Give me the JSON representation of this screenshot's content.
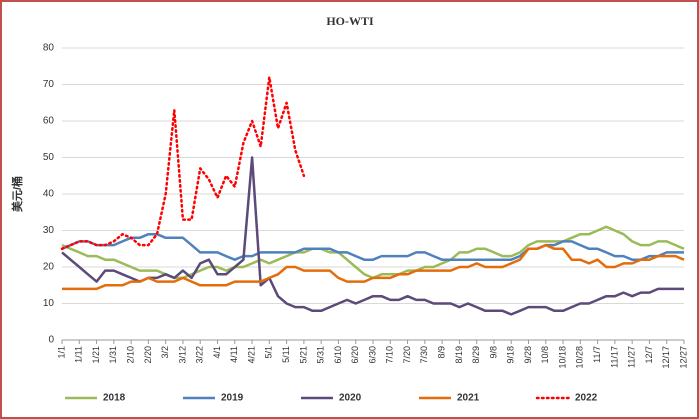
{
  "chart_data": {
    "type": "line",
    "title": "HO-WTI",
    "y_label": "美元/桶",
    "categories": [
      "1/1",
      null,
      "1/11",
      null,
      "1/21",
      null,
      "1/31",
      null,
      "2/10",
      null,
      "2/20",
      null,
      "3/2",
      null,
      "3/12",
      null,
      "3/22",
      null,
      "4/1",
      null,
      "4/11",
      null,
      "4/21",
      null,
      "5/1",
      null,
      "5/11",
      null,
      "5/21",
      null,
      "5/31",
      null,
      "6/10",
      null,
      "6/20",
      null,
      "6/30",
      null,
      "7/10",
      null,
      "7/20",
      null,
      "7/30",
      null,
      "8/9",
      null,
      "8/19",
      null,
      "8/29",
      null,
      "9/8",
      null,
      "9/18",
      null,
      "9/28",
      null,
      "10/8",
      null,
      "10/18",
      null,
      "10/28",
      null,
      "11/7",
      null,
      "11/17",
      null,
      "11/27",
      null,
      "12/7",
      null,
      "12/17",
      null,
      "12/27"
    ],
    "series": [
      {
        "name": "2018",
        "color": "#9bbb59",
        "dash": "solid",
        "values": [
          26,
          25,
          24,
          23,
          23,
          22,
          22,
          21,
          20,
          19,
          19,
          19,
          18,
          17,
          17,
          18,
          19,
          20,
          20,
          19,
          20,
          20,
          21,
          22,
          21,
          22,
          23,
          24,
          24,
          25,
          25,
          24,
          24,
          22,
          20,
          18,
          17,
          18,
          18,
          18,
          19,
          19,
          20,
          20,
          21,
          22,
          24,
          24,
          25,
          25,
          24,
          23,
          23,
          24,
          26,
          27,
          27,
          27,
          27,
          28,
          29,
          29,
          30,
          31,
          30,
          29,
          27,
          26,
          26,
          27,
          27,
          26,
          25
        ]
      },
      {
        "name": "2019",
        "color": "#4f81bd",
        "dash": "solid",
        "values": [
          25,
          26,
          27,
          27,
          26,
          26,
          26,
          27,
          28,
          28,
          29,
          29,
          28,
          28,
          28,
          26,
          24,
          24,
          24,
          23,
          22,
          23,
          23,
          24,
          24,
          24,
          24,
          24,
          25,
          25,
          25,
          25,
          24,
          24,
          23,
          22,
          22,
          23,
          23,
          23,
          23,
          24,
          24,
          23,
          22,
          22,
          22,
          22,
          22,
          22,
          22,
          22,
          22,
          23,
          25,
          25,
          26,
          26,
          27,
          27,
          26,
          25,
          25,
          24,
          23,
          23,
          22,
          22,
          23,
          23,
          24,
          24,
          24
        ]
      },
      {
        "name": "2020",
        "color": "#5b4a7a",
        "dash": "solid",
        "values": [
          24,
          22,
          20,
          18,
          16,
          19,
          19,
          18,
          17,
          16,
          17,
          17,
          18,
          17,
          19,
          17,
          21,
          22,
          18,
          18,
          20,
          22,
          50,
          15,
          17,
          12,
          10,
          9,
          9,
          8,
          8,
          9,
          10,
          11,
          10,
          11,
          12,
          12,
          11,
          11,
          12,
          11,
          11,
          10,
          10,
          10,
          9,
          10,
          9,
          8,
          8,
          8,
          7,
          8,
          9,
          9,
          9,
          8,
          8,
          9,
          10,
          10,
          11,
          12,
          12,
          13,
          12,
          13,
          13,
          14,
          14,
          14,
          14
        ]
      },
      {
        "name": "2021",
        "color": "#e46c0a",
        "dash": "solid",
        "values": [
          14,
          14,
          14,
          14,
          14,
          15,
          15,
          15,
          16,
          16,
          17,
          16,
          16,
          16,
          17,
          16,
          15,
          15,
          15,
          15,
          16,
          16,
          16,
          16,
          17,
          18,
          20,
          20,
          19,
          19,
          19,
          19,
          17,
          16,
          16,
          16,
          17,
          17,
          17,
          18,
          18,
          19,
          19,
          19,
          19,
          19,
          20,
          20,
          21,
          20,
          20,
          20,
          21,
          22,
          25,
          25,
          26,
          25,
          25,
          22,
          22,
          21,
          22,
          20,
          20,
          21,
          21,
          22,
          22,
          23,
          23,
          23,
          22
        ]
      },
      {
        "name": "2022",
        "color": "#ff0000",
        "dash": "dotted",
        "values": [
          25,
          26,
          27,
          27,
          26,
          26,
          27,
          29,
          28,
          26,
          26,
          29,
          40,
          63,
          33,
          33,
          47,
          44,
          39,
          45,
          42,
          54,
          60,
          53,
          72,
          58,
          65,
          52,
          45,
          null,
          null,
          null,
          null,
          null,
          null,
          null,
          null,
          null,
          null,
          null,
          null,
          null,
          null,
          null,
          null,
          null,
          null,
          null,
          null,
          null,
          null,
          null,
          null,
          null,
          null,
          null,
          null,
          null,
          null,
          null,
          null,
          null,
          null,
          null,
          null,
          null,
          null,
          null,
          null,
          null,
          null,
          null,
          null
        ]
      }
    ],
    "ylim": [
      0,
      80
    ],
    "yticks": [
      0,
      10,
      20,
      30,
      40,
      50,
      60,
      70,
      80
    ],
    "grid": true,
    "legend": "bottom"
  }
}
